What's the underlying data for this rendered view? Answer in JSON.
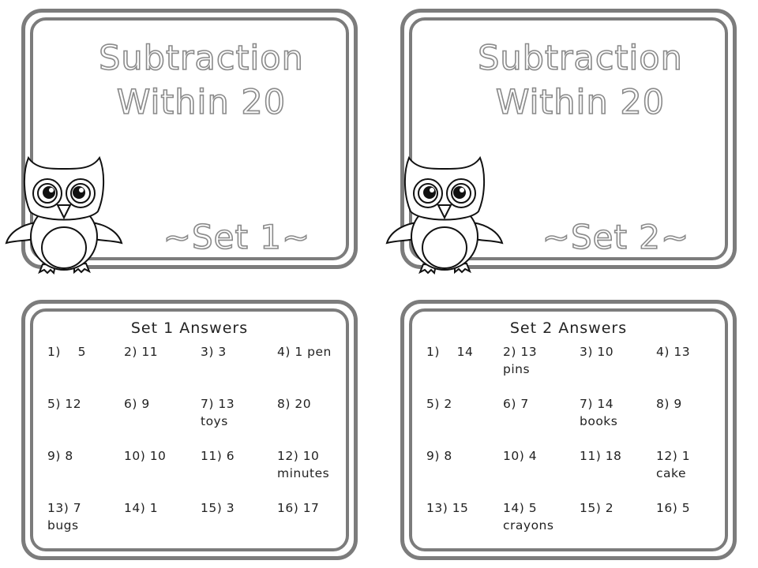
{
  "title_cards": [
    {
      "title_line1": "Subtraction",
      "title_line2": "Within 20",
      "set_label": "~Set 1~"
    },
    {
      "title_line1": "Subtraction",
      "title_line2": "Within 20",
      "set_label": "~Set 2~"
    }
  ],
  "answer_cards": [
    {
      "heading": "Set 1 Answers",
      "answers": [
        "1)    5",
        "2) 11",
        "3) 3",
        "4) 1 pen",
        "5) 12",
        "6) 9",
        "7) 13\ntoys",
        "8) 20",
        "9) 8",
        "10) 10",
        "11) 6",
        "12) 10\nminutes",
        "13) 7\nbugs",
        "14) 1",
        "15) 3",
        "16) 17"
      ]
    },
    {
      "heading": "Set 2 Answers",
      "answers": [
        "1)    14",
        "2) 13\npins",
        "3) 10",
        "4) 13",
        "5) 2",
        "6) 7",
        "7) 14\nbooks",
        "8) 9",
        "9) 8",
        "10) 4",
        "11) 18",
        "12) 1\ncake",
        "13) 15",
        "14) 5\ncrayons",
        "15) 2",
        "16) 5"
      ]
    }
  ],
  "icons": {
    "owl": "owl-icon"
  },
  "colors": {
    "border": "#7c7c7c",
    "title_outline": "#8a8a8a",
    "text": "#222222"
  }
}
